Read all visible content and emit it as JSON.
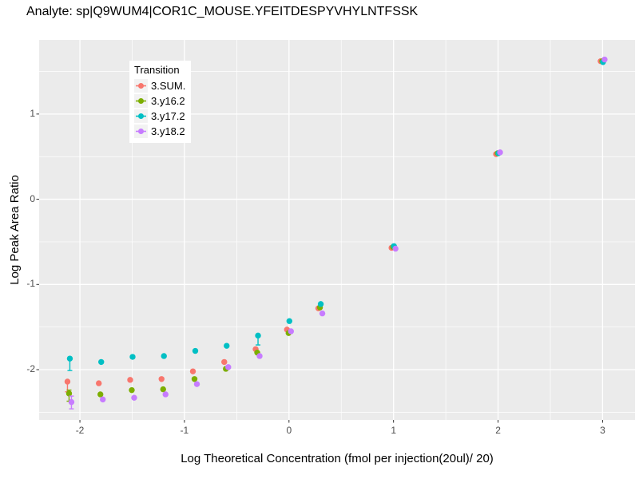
{
  "chart_data": {
    "type": "scatter",
    "title": "Analyte: sp|Q9WUM4|COR1C_MOUSE.YFEITDESPYVHYLNTFSSK",
    "xlabel": "Log Theoretical Concentration (fmol per injection(20ul)/ 20)",
    "ylabel": "Log Peak Area Ratio",
    "legend_title": "Transition",
    "legend_position": "inside-top-left",
    "grid": "on",
    "x_domain": [
      -2.39,
      3.31
    ],
    "y_domain": [
      -2.59,
      1.87
    ],
    "x_ticks": [
      -2,
      -1,
      0,
      1,
      2,
      3
    ],
    "x_minor_ticks": [
      -1.5,
      -0.5,
      0.5,
      1.5,
      2.5
    ],
    "y_ticks": [
      1,
      0,
      -1,
      -2
    ],
    "y_minor_ticks": [
      1.5,
      0.5,
      -0.5,
      -1.5,
      -2.5
    ],
    "point_format": [
      "x",
      "y",
      "err_low",
      "err_high"
    ],
    "style": {
      "panel_bg": "#EBEBEB",
      "grid_color": "#FFFFFF",
      "tick_text": "#4D4D4D",
      "tick_mark": "#333333",
      "key_bg": "#F2F2F2"
    },
    "series": [
      {
        "name": "3.SUM.",
        "color": "#F8766D",
        "points": [
          [
            -2.1,
            -2.14,
            -2.26,
            -2.14
          ],
          [
            -1.8,
            -2.16,
            -2.16,
            -2.16
          ],
          [
            -1.5,
            -2.12,
            -2.12,
            -2.12
          ],
          [
            -1.2,
            -2.11,
            -2.11,
            -2.11
          ],
          [
            -0.9,
            -2.02,
            -2.02,
            -2.02
          ],
          [
            -0.6,
            -1.91,
            -1.91,
            -1.91
          ],
          [
            -0.3,
            -1.76,
            -1.76,
            -1.76
          ],
          [
            0,
            -1.53,
            -1.53,
            -1.53
          ],
          [
            0.3,
            -1.28,
            -1.28,
            -1.28
          ],
          [
            1,
            -0.57,
            -0.57,
            -0.57
          ],
          [
            2,
            0.53,
            0.53,
            0.53
          ],
          [
            3,
            1.62,
            1.62,
            1.62
          ]
        ]
      },
      {
        "name": "3.y16.2",
        "color": "#7CAE00",
        "points": [
          [
            -2.1,
            -2.28,
            -2.37,
            -2.24
          ],
          [
            -1.8,
            -2.29,
            -2.29,
            -2.29
          ],
          [
            -1.5,
            -2.24,
            -2.24,
            -2.24
          ],
          [
            -1.2,
            -2.23,
            -2.23,
            -2.23
          ],
          [
            -0.9,
            -2.11,
            -2.11,
            -2.11
          ],
          [
            -0.6,
            -1.99,
            -1.99,
            -1.99
          ],
          [
            -0.3,
            -1.8,
            -1.8,
            -1.8
          ],
          [
            0,
            -1.57,
            -1.57,
            -1.57
          ],
          [
            0.3,
            -1.27,
            -1.27,
            -1.27
          ],
          [
            1,
            -0.56,
            -0.56,
            -0.56
          ],
          [
            2,
            0.54,
            0.54,
            0.54
          ],
          [
            3,
            1.62,
            1.62,
            1.62
          ]
        ]
      },
      {
        "name": "3.y17.2",
        "color": "#00BFC4",
        "points": [
          [
            -2.1,
            -1.87,
            -2.01,
            -1.87
          ],
          [
            -1.8,
            -1.91,
            -1.91,
            -1.91
          ],
          [
            -1.5,
            -1.85,
            -1.85,
            -1.85
          ],
          [
            -1.2,
            -1.84,
            -1.84,
            -1.84
          ],
          [
            -0.9,
            -1.78,
            -1.78,
            -1.78
          ],
          [
            -0.6,
            -1.72,
            -1.72,
            -1.72
          ],
          [
            -0.3,
            -1.6,
            -1.71,
            -1.6
          ],
          [
            0,
            -1.43,
            -1.43,
            -1.43
          ],
          [
            0.3,
            -1.23,
            -1.23,
            -1.23
          ],
          [
            1,
            -0.55,
            -0.55,
            -0.55
          ],
          [
            2,
            0.54,
            0.54,
            0.54
          ],
          [
            3,
            1.61,
            1.61,
            1.61
          ]
        ]
      },
      {
        "name": "3.y18.2",
        "color": "#C77CFF",
        "points": [
          [
            -2.1,
            -2.38,
            -2.46,
            -2.31
          ],
          [
            -1.8,
            -2.35,
            -2.35,
            -2.35
          ],
          [
            -1.5,
            -2.33,
            -2.33,
            -2.33
          ],
          [
            -1.2,
            -2.29,
            -2.29,
            -2.29
          ],
          [
            -0.9,
            -2.17,
            -2.17,
            -2.17
          ],
          [
            -0.6,
            -1.97,
            -1.97,
            -1.97
          ],
          [
            -0.3,
            -1.84,
            -1.84,
            -1.84
          ],
          [
            0,
            -1.55,
            -1.55,
            -1.55
          ],
          [
            0.3,
            -1.34,
            -1.34,
            -1.34
          ],
          [
            1,
            -0.58,
            -0.58,
            -0.58
          ],
          [
            2,
            0.55,
            0.55,
            0.55
          ],
          [
            3,
            1.64,
            1.64,
            1.64
          ]
        ]
      }
    ]
  }
}
